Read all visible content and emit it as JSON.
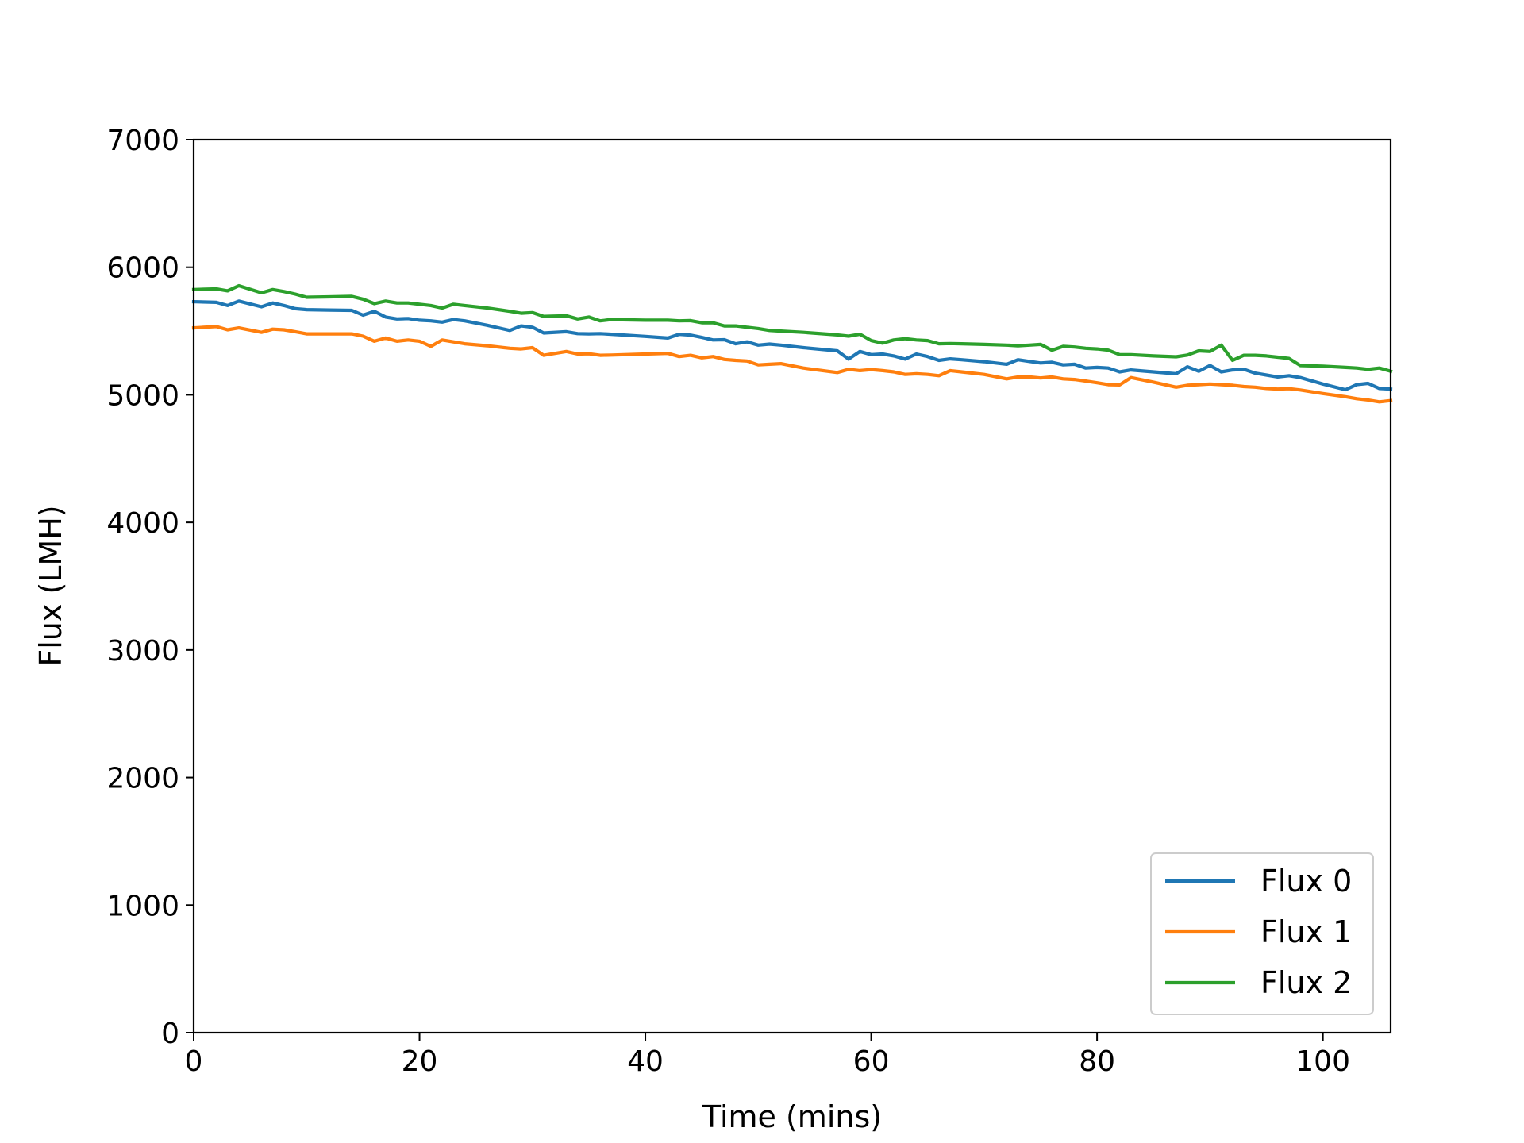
{
  "chart_data": {
    "type": "line",
    "xlabel": "Time (mins)",
    "ylabel": "Flux (LMH)",
    "xlim": [
      0,
      106
    ],
    "ylim": [
      0,
      7000
    ],
    "xticks": [
      0,
      20,
      40,
      60,
      80,
      100
    ],
    "yticks": [
      0,
      1000,
      2000,
      3000,
      4000,
      5000,
      6000,
      7000
    ],
    "grid": false,
    "legend_position": "lower-right",
    "x": [
      0,
      2,
      3,
      4,
      6,
      7,
      8,
      9,
      10,
      12,
      14,
      15,
      16,
      17,
      18,
      19,
      20,
      21,
      22,
      23,
      24,
      26,
      28,
      29,
      30,
      31,
      33,
      34,
      35,
      36,
      37,
      40,
      42,
      43,
      44,
      45,
      46,
      47,
      48,
      49,
      50,
      51,
      52,
      54,
      57,
      58,
      59,
      60,
      61,
      62,
      63,
      64,
      65,
      66,
      67,
      68,
      70,
      72,
      73,
      74,
      75,
      76,
      77,
      78,
      79,
      80,
      81,
      82,
      83,
      85,
      87,
      88,
      89,
      90,
      91,
      92,
      93,
      94,
      95,
      96,
      97,
      98,
      100,
      102,
      103,
      104,
      105,
      106
    ],
    "series": [
      {
        "name": "Flux 0",
        "color": "#1f77b4",
        "values": [
          5730,
          5725,
          5700,
          5735,
          5690,
          5720,
          5700,
          5675,
          5668,
          5665,
          5662,
          5625,
          5655,
          5610,
          5595,
          5598,
          5585,
          5580,
          5570,
          5590,
          5580,
          5545,
          5505,
          5540,
          5530,
          5485,
          5495,
          5480,
          5478,
          5480,
          5475,
          5458,
          5445,
          5475,
          5468,
          5450,
          5430,
          5432,
          5400,
          5415,
          5390,
          5398,
          5390,
          5370,
          5345,
          5280,
          5340,
          5315,
          5320,
          5305,
          5280,
          5320,
          5300,
          5270,
          5282,
          5275,
          5260,
          5240,
          5275,
          5262,
          5250,
          5255,
          5235,
          5240,
          5210,
          5215,
          5210,
          5180,
          5195,
          5180,
          5165,
          5220,
          5185,
          5230,
          5180,
          5195,
          5200,
          5170,
          5155,
          5140,
          5150,
          5135,
          5085,
          5040,
          5080,
          5090,
          5050,
          5045
        ]
      },
      {
        "name": "Flux 1",
        "color": "#ff7f0e",
        "values": [
          5525,
          5535,
          5510,
          5525,
          5490,
          5515,
          5510,
          5495,
          5478,
          5478,
          5478,
          5460,
          5420,
          5445,
          5420,
          5430,
          5420,
          5380,
          5430,
          5415,
          5400,
          5385,
          5365,
          5360,
          5370,
          5310,
          5340,
          5320,
          5322,
          5310,
          5312,
          5320,
          5325,
          5300,
          5310,
          5290,
          5300,
          5278,
          5270,
          5265,
          5235,
          5240,
          5245,
          5210,
          5175,
          5200,
          5190,
          5198,
          5190,
          5180,
          5160,
          5165,
          5160,
          5150,
          5190,
          5180,
          5160,
          5125,
          5140,
          5140,
          5132,
          5140,
          5125,
          5120,
          5108,
          5095,
          5080,
          5078,
          5135,
          5100,
          5060,
          5075,
          5080,
          5085,
          5080,
          5075,
          5065,
          5060,
          5050,
          5045,
          5048,
          5038,
          5010,
          4985,
          4970,
          4960,
          4945,
          4955
        ]
      },
      {
        "name": "Flux 2",
        "color": "#2ca02c",
        "values": [
          5825,
          5830,
          5815,
          5855,
          5800,
          5825,
          5810,
          5790,
          5765,
          5768,
          5772,
          5750,
          5715,
          5735,
          5720,
          5720,
          5710,
          5700,
          5680,
          5710,
          5700,
          5680,
          5655,
          5640,
          5645,
          5615,
          5620,
          5595,
          5610,
          5580,
          5590,
          5585,
          5585,
          5580,
          5582,
          5565,
          5565,
          5540,
          5540,
          5530,
          5520,
          5505,
          5500,
          5490,
          5470,
          5460,
          5475,
          5425,
          5405,
          5430,
          5440,
          5430,
          5425,
          5400,
          5402,
          5400,
          5395,
          5390,
          5385,
          5390,
          5395,
          5350,
          5380,
          5375,
          5365,
          5360,
          5350,
          5315,
          5315,
          5305,
          5298,
          5312,
          5345,
          5340,
          5390,
          5270,
          5310,
          5310,
          5305,
          5295,
          5285,
          5230,
          5225,
          5215,
          5210,
          5200,
          5210,
          5185
        ]
      }
    ]
  }
}
